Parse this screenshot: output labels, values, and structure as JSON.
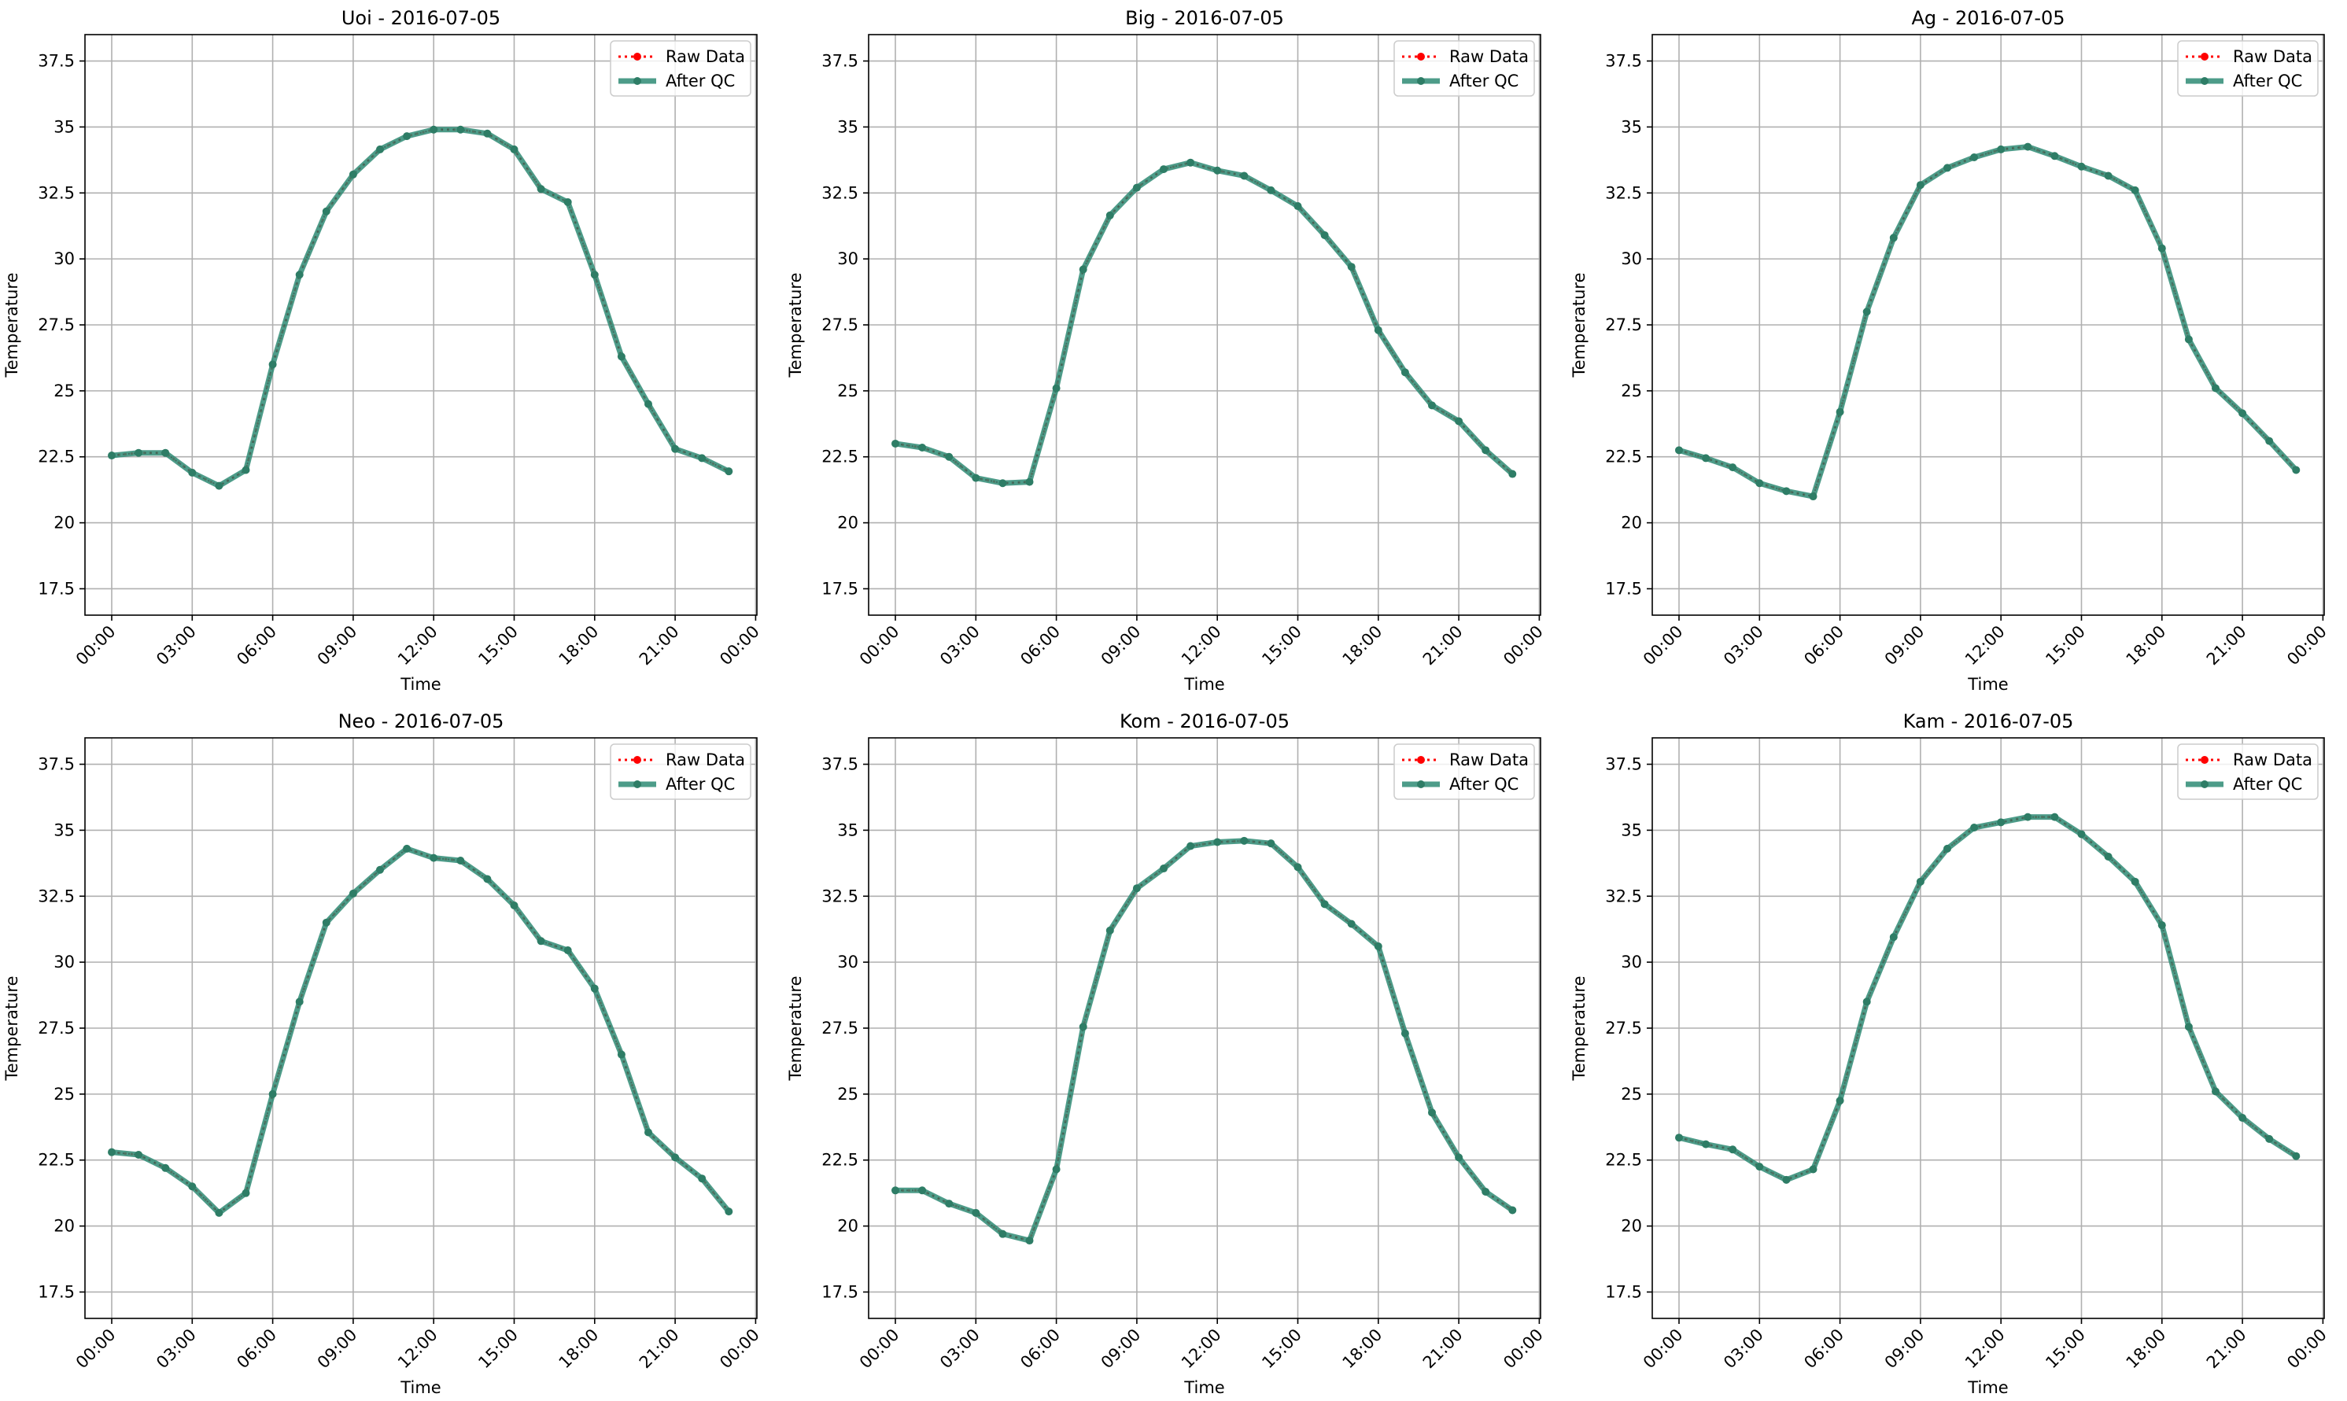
{
  "colors": {
    "raw": "#ff0000",
    "qc": "#2e8b74",
    "qc_marker": "#2e7d66",
    "grid": "#b0b0b0",
    "axes": "#000000"
  },
  "chart_data": [
    {
      "type": "line",
      "title": "Uoi - 2016-07-05",
      "xlabel": "Time",
      "ylabel": "Temperature",
      "ylim": [
        16.5,
        38.5
      ],
      "yticks": [
        17.5,
        20.0,
        22.5,
        25.0,
        27.5,
        30.0,
        32.5,
        35.0,
        37.5
      ],
      "xticks": [
        "00:00",
        "03:00",
        "06:00",
        "09:00",
        "12:00",
        "15:00",
        "18:00",
        "21:00",
        "00:00"
      ],
      "grid": true,
      "legend": "upper-right",
      "x": [
        "00:00",
        "01:00",
        "02:00",
        "03:00",
        "04:00",
        "05:00",
        "06:00",
        "07:00",
        "08:00",
        "09:00",
        "10:00",
        "11:00",
        "12:00",
        "13:00",
        "14:00",
        "15:00",
        "16:00",
        "17:00",
        "18:00",
        "19:00",
        "20:00",
        "21:00",
        "22:00",
        "23:00"
      ],
      "series": [
        {
          "name": "Raw Data",
          "values": [
            22.55,
            22.65,
            22.65,
            21.9,
            21.4,
            22.0,
            26.0,
            29.4,
            31.8,
            33.2,
            34.15,
            34.65,
            34.9,
            34.9,
            34.75,
            34.15,
            32.65,
            32.15,
            29.4,
            26.3,
            24.5,
            22.8,
            22.45,
            21.95
          ]
        },
        {
          "name": "After QC",
          "values": [
            22.55,
            22.65,
            22.65,
            21.9,
            21.4,
            22.0,
            26.0,
            29.4,
            31.8,
            33.2,
            34.15,
            34.65,
            34.9,
            34.9,
            34.75,
            34.15,
            32.65,
            32.15,
            29.4,
            26.3,
            24.5,
            22.8,
            22.45,
            21.95
          ]
        }
      ]
    },
    {
      "type": "line",
      "title": "Big - 2016-07-05",
      "xlabel": "Time",
      "ylabel": "Temperature",
      "ylim": [
        16.5,
        38.5
      ],
      "yticks": [
        17.5,
        20.0,
        22.5,
        25.0,
        27.5,
        30.0,
        32.5,
        35.0,
        37.5
      ],
      "xticks": [
        "00:00",
        "03:00",
        "06:00",
        "09:00",
        "12:00",
        "15:00",
        "18:00",
        "21:00",
        "00:00"
      ],
      "grid": true,
      "legend": "upper-right",
      "x": [
        "00:00",
        "01:00",
        "02:00",
        "03:00",
        "04:00",
        "05:00",
        "06:00",
        "07:00",
        "08:00",
        "09:00",
        "10:00",
        "11:00",
        "12:00",
        "13:00",
        "14:00",
        "15:00",
        "16:00",
        "17:00",
        "18:00",
        "19:00",
        "20:00",
        "21:00",
        "22:00",
        "23:00"
      ],
      "series": [
        {
          "name": "Raw Data",
          "values": [
            23.0,
            22.85,
            22.5,
            21.7,
            21.5,
            21.55,
            25.1,
            29.6,
            31.65,
            32.7,
            33.4,
            33.65,
            33.35,
            33.15,
            32.6,
            32.0,
            30.9,
            29.7,
            27.3,
            25.7,
            24.45,
            23.85,
            22.75,
            21.85
          ]
        },
        {
          "name": "After QC",
          "values": [
            23.0,
            22.85,
            22.5,
            21.7,
            21.5,
            21.55,
            25.1,
            29.6,
            31.65,
            32.7,
            33.4,
            33.65,
            33.35,
            33.15,
            32.6,
            32.0,
            30.9,
            29.7,
            27.3,
            25.7,
            24.45,
            23.85,
            22.75,
            21.85
          ]
        }
      ]
    },
    {
      "type": "line",
      "title": "Ag - 2016-07-05",
      "xlabel": "Time",
      "ylabel": "Temperature",
      "ylim": [
        16.5,
        38.5
      ],
      "yticks": [
        17.5,
        20.0,
        22.5,
        25.0,
        27.5,
        30.0,
        32.5,
        35.0,
        37.5
      ],
      "xticks": [
        "00:00",
        "03:00",
        "06:00",
        "09:00",
        "12:00",
        "15:00",
        "18:00",
        "21:00",
        "00:00"
      ],
      "grid": true,
      "legend": "upper-right",
      "x": [
        "00:00",
        "01:00",
        "02:00",
        "03:00",
        "04:00",
        "05:00",
        "06:00",
        "07:00",
        "08:00",
        "09:00",
        "10:00",
        "11:00",
        "12:00",
        "13:00",
        "14:00",
        "15:00",
        "16:00",
        "17:00",
        "18:00",
        "19:00",
        "20:00",
        "21:00",
        "22:00",
        "23:00"
      ],
      "series": [
        {
          "name": "Raw Data",
          "values": [
            22.75,
            22.45,
            22.1,
            21.5,
            21.2,
            21.0,
            24.2,
            28.0,
            30.8,
            32.8,
            33.45,
            33.85,
            34.15,
            34.25,
            33.9,
            33.5,
            33.15,
            32.6,
            30.4,
            26.95,
            25.1,
            24.15,
            23.1,
            22.0
          ]
        },
        {
          "name": "After QC",
          "values": [
            22.75,
            22.45,
            22.1,
            21.5,
            21.2,
            21.0,
            24.2,
            28.0,
            30.8,
            32.8,
            33.45,
            33.85,
            34.15,
            34.25,
            33.9,
            33.5,
            33.15,
            32.6,
            30.4,
            26.95,
            25.1,
            24.15,
            23.1,
            22.0
          ]
        }
      ]
    },
    {
      "type": "line",
      "title": "Neo - 2016-07-05",
      "xlabel": "Time",
      "ylabel": "Temperature",
      "ylim": [
        16.5,
        38.5
      ],
      "yticks": [
        17.5,
        20.0,
        22.5,
        25.0,
        27.5,
        30.0,
        32.5,
        35.0,
        37.5
      ],
      "xticks": [
        "00:00",
        "03:00",
        "06:00",
        "09:00",
        "12:00",
        "15:00",
        "18:00",
        "21:00",
        "00:00"
      ],
      "grid": true,
      "legend": "upper-right",
      "x": [
        "00:00",
        "01:00",
        "02:00",
        "03:00",
        "04:00",
        "05:00",
        "06:00",
        "07:00",
        "08:00",
        "09:00",
        "10:00",
        "11:00",
        "12:00",
        "13:00",
        "14:00",
        "15:00",
        "16:00",
        "17:00",
        "18:00",
        "19:00",
        "20:00",
        "21:00",
        "22:00",
        "23:00"
      ],
      "series": [
        {
          "name": "Raw Data",
          "values": [
            22.8,
            22.7,
            22.2,
            21.5,
            20.5,
            21.25,
            25.0,
            28.5,
            31.5,
            32.6,
            33.5,
            34.3,
            33.95,
            33.85,
            33.15,
            32.15,
            30.8,
            30.45,
            29.0,
            26.5,
            23.55,
            22.6,
            21.8,
            20.55
          ]
        },
        {
          "name": "After QC",
          "values": [
            22.8,
            22.7,
            22.2,
            21.5,
            20.5,
            21.25,
            25.0,
            28.5,
            31.5,
            32.6,
            33.5,
            34.3,
            33.95,
            33.85,
            33.15,
            32.15,
            30.8,
            30.45,
            29.0,
            26.5,
            23.55,
            22.6,
            21.8,
            20.55
          ]
        }
      ]
    },
    {
      "type": "line",
      "title": "Kom - 2016-07-05",
      "xlabel": "Time",
      "ylabel": "Temperature",
      "ylim": [
        16.5,
        38.5
      ],
      "yticks": [
        17.5,
        20.0,
        22.5,
        25.0,
        27.5,
        30.0,
        32.5,
        35.0,
        37.5
      ],
      "xticks": [
        "00:00",
        "03:00",
        "06:00",
        "09:00",
        "12:00",
        "15:00",
        "18:00",
        "21:00",
        "00:00"
      ],
      "grid": true,
      "legend": "upper-right",
      "x": [
        "00:00",
        "01:00",
        "02:00",
        "03:00",
        "04:00",
        "05:00",
        "06:00",
        "07:00",
        "08:00",
        "09:00",
        "10:00",
        "11:00",
        "12:00",
        "13:00",
        "14:00",
        "15:00",
        "16:00",
        "17:00",
        "18:00",
        "19:00",
        "20:00",
        "21:00",
        "22:00",
        "23:00"
      ],
      "series": [
        {
          "name": "Raw Data",
          "values": [
            21.35,
            21.35,
            20.85,
            20.5,
            19.7,
            19.45,
            22.15,
            27.55,
            31.2,
            32.8,
            33.55,
            34.4,
            34.55,
            34.6,
            34.5,
            33.6,
            32.2,
            31.45,
            30.6,
            27.3,
            24.3,
            22.6,
            21.3,
            20.6
          ]
        },
        {
          "name": "After QC",
          "values": [
            21.35,
            21.35,
            20.85,
            20.5,
            19.7,
            19.45,
            22.15,
            27.55,
            31.2,
            32.8,
            33.55,
            34.4,
            34.55,
            34.6,
            34.5,
            33.6,
            32.2,
            31.45,
            30.6,
            27.3,
            24.3,
            22.6,
            21.3,
            20.6
          ]
        }
      ]
    },
    {
      "type": "line",
      "title": "Kam - 2016-07-05",
      "xlabel": "Time",
      "ylabel": "Temperature",
      "ylim": [
        16.5,
        38.5
      ],
      "yticks": [
        17.5,
        20.0,
        22.5,
        25.0,
        27.5,
        30.0,
        32.5,
        35.0,
        37.5
      ],
      "xticks": [
        "00:00",
        "03:00",
        "06:00",
        "09:00",
        "12:00",
        "15:00",
        "18:00",
        "21:00",
        "00:00"
      ],
      "grid": true,
      "legend": "upper-right",
      "x": [
        "00:00",
        "01:00",
        "02:00",
        "03:00",
        "04:00",
        "05:00",
        "06:00",
        "07:00",
        "08:00",
        "09:00",
        "10:00",
        "11:00",
        "12:00",
        "13:00",
        "14:00",
        "15:00",
        "16:00",
        "17:00",
        "18:00",
        "19:00",
        "20:00",
        "21:00",
        "22:00",
        "23:00"
      ],
      "series": [
        {
          "name": "Raw Data",
          "values": [
            23.35,
            23.1,
            22.9,
            22.25,
            21.75,
            22.15,
            24.75,
            28.5,
            30.95,
            33.05,
            34.3,
            35.1,
            35.3,
            35.5,
            35.5,
            34.85,
            34.0,
            33.05,
            31.4,
            27.55,
            25.1,
            24.1,
            23.3,
            22.65
          ]
        },
        {
          "name": "After QC",
          "values": [
            23.35,
            23.1,
            22.9,
            22.25,
            21.75,
            22.15,
            24.75,
            28.5,
            30.95,
            33.05,
            34.3,
            35.1,
            35.3,
            35.5,
            35.5,
            34.85,
            34.0,
            33.05,
            31.4,
            27.55,
            25.1,
            24.1,
            23.3,
            22.65
          ]
        }
      ]
    }
  ]
}
